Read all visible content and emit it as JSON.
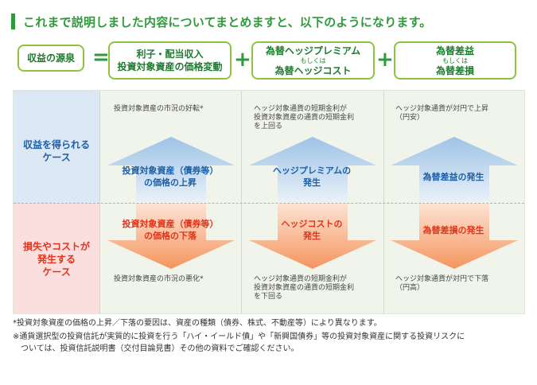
{
  "heading": "これまで説明しました内容についてまとめますと、以下のようになります。",
  "equation": {
    "source_label": "収益の源泉",
    "equals": "=",
    "plus": "+",
    "term1": [
      "利子・配当収入",
      "投資対象資産の価格変動"
    ],
    "term2": {
      "a": "為替ヘッジプレミアム",
      "or": "もしくは",
      "b": "為替ヘッジコスト"
    },
    "term3": {
      "a": "為替差益",
      "or": "もしくは",
      "b": "為替差損"
    }
  },
  "rows": {
    "gain": [
      "収益を得られる",
      "ケース"
    ],
    "loss": [
      "損失やコストが",
      "発生する",
      "ケース"
    ]
  },
  "columns": [
    {
      "top_desc": [
        "投資対象資産の市況の好転*"
      ],
      "up_label": [
        "投資対象資産（債券等）",
        "の価格の上昇"
      ],
      "down_label": [
        "投資対象資産（債券等）",
        "の価格の下落"
      ],
      "bottom_desc": [
        "投資対象資産の市況の悪化*"
      ]
    },
    {
      "top_desc": [
        "ヘッジ対象通貨の短期金利が",
        "投資対象資産の通貨の短期金利",
        "を上回る"
      ],
      "up_label": [
        "ヘッジプレミアムの",
        "発生"
      ],
      "down_label": [
        "ヘッジコストの",
        "発生"
      ],
      "bottom_desc": [
        "ヘッジ対象通貨の短期金利が",
        "投資対象資産の通貨の短期金利",
        "を下回る"
      ]
    },
    {
      "top_desc": [
        "ヘッジ対象通貨が対円で上昇",
        "（円安）"
      ],
      "up_label": [
        "為替差益の発生"
      ],
      "down_label": [
        "為替差損の発生"
      ],
      "bottom_desc": [
        "ヘッジ対象通貨が対円で下落",
        "（円高）"
      ]
    }
  ],
  "notes": [
    "*投資対象資産の価格の上昇／下落の要因は、資産の種類（債券、株式、不動産等）により異なります。",
    "※通貨選択型の投資信託が実質的に投資を行う「ハイ・イールド債」や「新興国債券」等の投資対象資産に関する投資リスクに",
    "　ついては、投資信託説明書（交付目論見書）その他の資料でご確認ください。"
  ],
  "colors": {
    "green": "#2f9a3a",
    "box_border": "#8cc63f",
    "blue_text": "#1f5fa8",
    "red_text": "#e0341b",
    "up_arrow": "#c9ddf0",
    "down_arrow": "#f6a77a"
  }
}
